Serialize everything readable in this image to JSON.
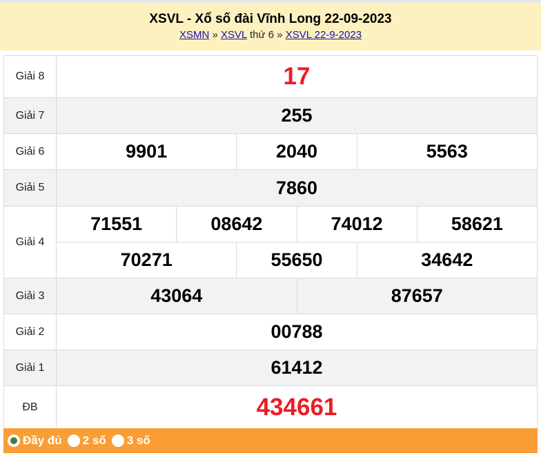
{
  "header": {
    "title": "XSVL - Xổ số đài Vĩnh Long 22-09-2023",
    "crumbs": {
      "link1": "XSMN",
      "sep1": " » ",
      "link2": "XSVL",
      "text": " thứ 6 » ",
      "link3": "XSVL 22-9-2023"
    }
  },
  "prizes": {
    "g8": {
      "label": "Giải 8",
      "values": [
        "17"
      ]
    },
    "g7": {
      "label": "Giải 7",
      "values": [
        "255"
      ]
    },
    "g6": {
      "label": "Giải 6",
      "values": [
        "9901",
        "2040",
        "5563"
      ]
    },
    "g5": {
      "label": "Giải 5",
      "values": [
        "7860"
      ]
    },
    "g4": {
      "label": "Giải 4",
      "values": [
        "71551",
        "08642",
        "74012",
        "58621",
        "70271",
        "55650",
        "34642"
      ]
    },
    "g3": {
      "label": "Giải 3",
      "values": [
        "43064",
        "87657"
      ]
    },
    "g2": {
      "label": "Giải 2",
      "values": [
        "00788"
      ]
    },
    "g1": {
      "label": "Giải 1",
      "values": [
        "61412"
      ]
    },
    "db": {
      "label": "ĐB",
      "values": [
        "434661"
      ]
    }
  },
  "footer": {
    "options": [
      {
        "label": "Đầy đủ",
        "selected": true
      },
      {
        "label": "2 số",
        "selected": false
      },
      {
        "label": "3 số",
        "selected": false
      }
    ]
  },
  "colors": {
    "header_bg": "#fdf1c0",
    "highlight": "#ec1c24",
    "footer_bg": "#fa9d35"
  }
}
